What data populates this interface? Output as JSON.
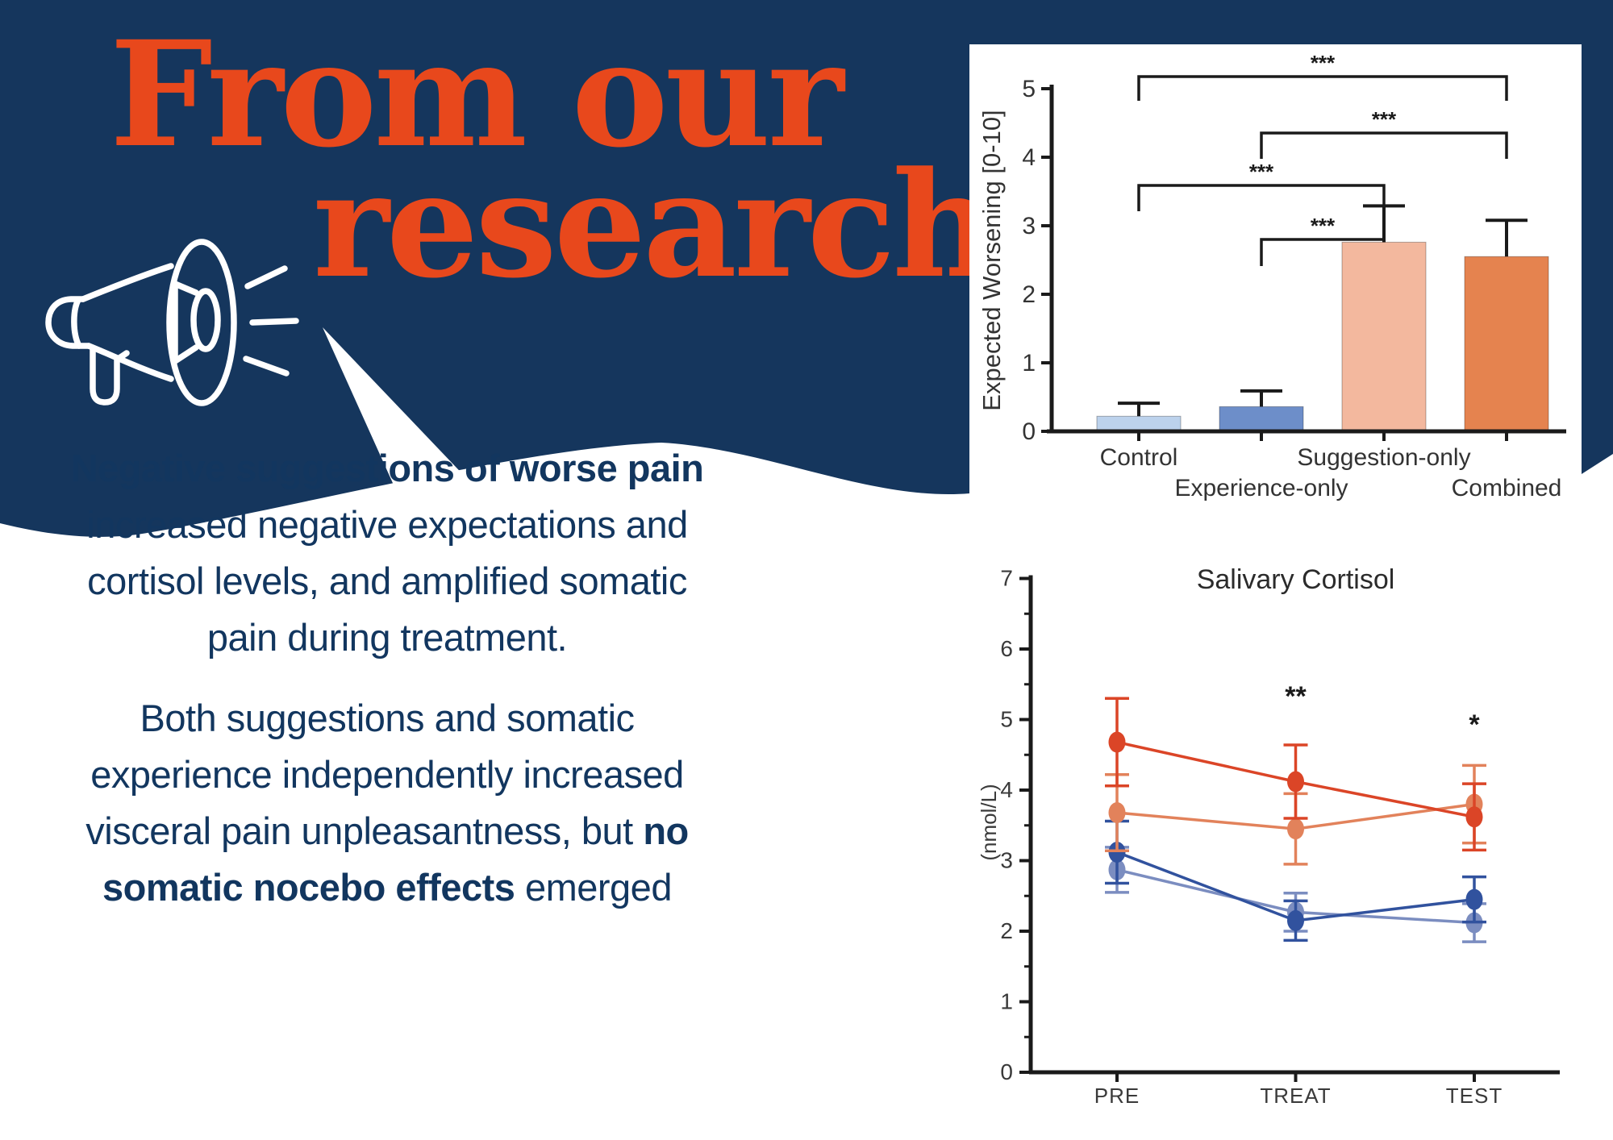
{
  "header": {
    "line1": "From our",
    "line2": "research"
  },
  "colors": {
    "navy": "#15365D",
    "accent_orange": "#E8481C",
    "body_text": "#12365F",
    "chart_axis": "#1A1A1A",
    "chart_text": "#333333"
  },
  "icons": [
    {
      "name": "megaphone-icon",
      "color": "#FFFFFF"
    },
    {
      "name": "sound-waves-icon",
      "color": "#FFFFFF"
    },
    {
      "name": "speech-tail",
      "color": "#FFFFFF"
    }
  ],
  "body": {
    "paragraphs": [
      {
        "lines": [
          [
            {
              "text": "Negative suggestions of worse pain",
              "bold": true
            }
          ],
          [
            {
              "text": "increased negative expectations and",
              "bold": false
            }
          ],
          [
            {
              "text": "cortisol levels, and amplified somatic",
              "bold": false
            }
          ],
          [
            {
              "text": "pain during treatment.",
              "bold": false
            }
          ]
        ]
      },
      {
        "lines": [
          [
            {
              "text": "Both suggestions and somatic",
              "bold": false
            }
          ],
          [
            {
              "text": "experience independently increased",
              "bold": false
            }
          ],
          [
            {
              "text": "visceral pain unpleasantness, but ",
              "bold": false
            },
            {
              "text": "no",
              "bold": true
            }
          ],
          [
            {
              "text": "somatic nocebo effects",
              "bold": true
            },
            {
              "text": " emerged",
              "bold": false
            }
          ]
        ]
      }
    ]
  },
  "chart_data": [
    {
      "type": "bar",
      "title": "",
      "xlabel": "",
      "ylabel": "Expected Worsening [0-10]",
      "ylim": [
        0,
        5
      ],
      "yticks": [
        0,
        1,
        2,
        3,
        4,
        5
      ],
      "grid": false,
      "categories": [
        "Control",
        "Experience-only",
        "Suggestion-only",
        "Combined"
      ],
      "values": [
        0.22,
        0.36,
        2.76,
        2.55
      ],
      "errors_upper": [
        0.41,
        0.59,
        3.29,
        3.08
      ],
      "bar_colors": [
        "#BCD2EC",
        "#6D8EC9",
        "#F3B89E",
        "#E5834F"
      ],
      "significance": [
        {
          "from": 0,
          "to": 3,
          "label": "***"
        },
        {
          "from": 1,
          "to": 3,
          "label": "***"
        },
        {
          "from": 0,
          "to": 2,
          "label": "***"
        },
        {
          "from": 1,
          "to": 2,
          "label": "***"
        }
      ]
    },
    {
      "type": "line",
      "title": "Salivary Cortisol",
      "xlabel": "",
      "ylabel": "(nmol/L)",
      "ylim": [
        0,
        7
      ],
      "yticks": [
        0,
        1,
        2,
        3,
        4,
        5,
        6,
        7
      ],
      "grid": false,
      "x": [
        "PRE",
        "TREAT",
        "TEST"
      ],
      "series": [
        {
          "name": "light-blue",
          "color": "#7B8DC0",
          "values": [
            2.87,
            2.27,
            2.12
          ],
          "err": [
            0.32,
            0.27,
            0.27
          ]
        },
        {
          "name": "dark-blue",
          "color": "#31529E",
          "values": [
            3.12,
            2.15,
            2.45
          ],
          "err": [
            0.44,
            0.28,
            0.32
          ]
        },
        {
          "name": "light-orange",
          "color": "#E2825B",
          "values": [
            3.68,
            3.45,
            3.8
          ],
          "err": [
            0.54,
            0.5,
            0.55
          ]
        },
        {
          "name": "dark-red",
          "color": "#DB4527",
          "values": [
            4.68,
            4.12,
            3.62
          ],
          "err": [
            0.62,
            0.52,
            0.47
          ]
        }
      ],
      "annotations": [
        {
          "x": "TREAT",
          "y": 5.2,
          "label": "**"
        },
        {
          "x": "TEST",
          "y": 4.8,
          "label": "*"
        }
      ]
    }
  ]
}
